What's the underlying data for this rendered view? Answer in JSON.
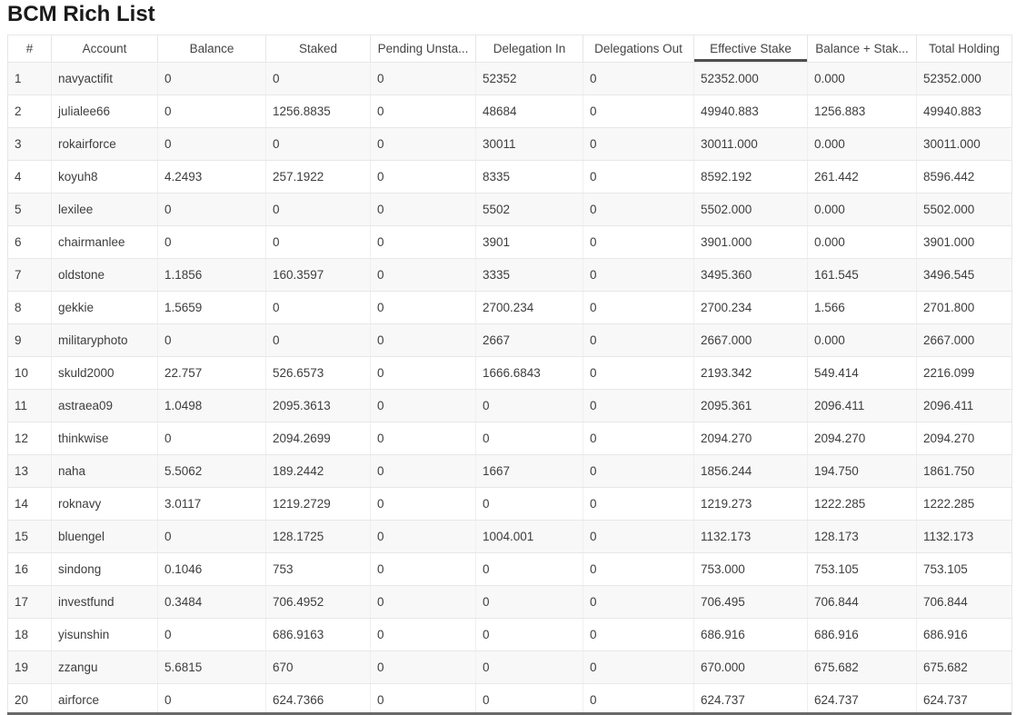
{
  "page": {
    "title": "BCM Rich List"
  },
  "colors": {
    "title_text": "#1a1a1a",
    "header_text": "#444444",
    "cell_text": "#3d3d3d",
    "row_stripe": "#f8f8f8",
    "border_light": "#e6e6e6",
    "sort_underline": "#4f4f4f"
  },
  "table": {
    "sorted_column": "Effective Stake",
    "columns": [
      {
        "key": "rank",
        "label": "#",
        "sorted": false
      },
      {
        "key": "account",
        "label": "Account",
        "sorted": false
      },
      {
        "key": "balance",
        "label": "Balance",
        "sorted": false
      },
      {
        "key": "staked",
        "label": "Staked",
        "sorted": false
      },
      {
        "key": "pending_unstaked",
        "label": "Pending Unsta...",
        "sorted": false
      },
      {
        "key": "delegation_in",
        "label": "Delegation In",
        "sorted": false
      },
      {
        "key": "delegations_out",
        "label": "Delegations Out",
        "sorted": false
      },
      {
        "key": "effective_stake",
        "label": "Effective Stake",
        "sorted": true
      },
      {
        "key": "balance_plus_staked",
        "label": "Balance + Stak...",
        "sorted": false
      },
      {
        "key": "total_holding",
        "label": "Total Holding",
        "sorted": false
      }
    ],
    "rows": [
      [
        "1",
        "navyactifit",
        "0",
        "0",
        "0",
        "52352",
        "0",
        "52352.000",
        "0.000",
        "52352.000"
      ],
      [
        "2",
        "julialee66",
        "0",
        "1256.8835",
        "0",
        "48684",
        "0",
        "49940.883",
        "1256.883",
        "49940.883"
      ],
      [
        "3",
        "rokairforce",
        "0",
        "0",
        "0",
        "30011",
        "0",
        "30011.000",
        "0.000",
        "30011.000"
      ],
      [
        "4",
        "koyuh8",
        "4.2493",
        "257.1922",
        "0",
        "8335",
        "0",
        "8592.192",
        "261.442",
        "8596.442"
      ],
      [
        "5",
        "lexilee",
        "0",
        "0",
        "0",
        "5502",
        "0",
        "5502.000",
        "0.000",
        "5502.000"
      ],
      [
        "6",
        "chairmanlee",
        "0",
        "0",
        "0",
        "3901",
        "0",
        "3901.000",
        "0.000",
        "3901.000"
      ],
      [
        "7",
        "oldstone",
        "1.1856",
        "160.3597",
        "0",
        "3335",
        "0",
        "3495.360",
        "161.545",
        "3496.545"
      ],
      [
        "8",
        "gekkie",
        "1.5659",
        "0",
        "0",
        "2700.234",
        "0",
        "2700.234",
        "1.566",
        "2701.800"
      ],
      [
        "9",
        "militaryphoto",
        "0",
        "0",
        "0",
        "2667",
        "0",
        "2667.000",
        "0.000",
        "2667.000"
      ],
      [
        "10",
        "skuld2000",
        "22.757",
        "526.6573",
        "0",
        "1666.6843",
        "0",
        "2193.342",
        "549.414",
        "2216.099"
      ],
      [
        "11",
        "astraea09",
        "1.0498",
        "2095.3613",
        "0",
        "0",
        "0",
        "2095.361",
        "2096.411",
        "2096.411"
      ],
      [
        "12",
        "thinkwise",
        "0",
        "2094.2699",
        "0",
        "0",
        "0",
        "2094.270",
        "2094.270",
        "2094.270"
      ],
      [
        "13",
        "naha",
        "5.5062",
        "189.2442",
        "0",
        "1667",
        "0",
        "1856.244",
        "194.750",
        "1861.750"
      ],
      [
        "14",
        "roknavy",
        "3.0117",
        "1219.2729",
        "0",
        "0",
        "0",
        "1219.273",
        "1222.285",
        "1222.285"
      ],
      [
        "15",
        "bluengel",
        "0",
        "128.1725",
        "0",
        "1004.001",
        "0",
        "1132.173",
        "128.173",
        "1132.173"
      ],
      [
        "16",
        "sindong",
        "0.1046",
        "753",
        "0",
        "0",
        "0",
        "753.000",
        "753.105",
        "753.105"
      ],
      [
        "17",
        "investfund",
        "0.3484",
        "706.4952",
        "0",
        "0",
        "0",
        "706.495",
        "706.844",
        "706.844"
      ],
      [
        "18",
        "yisunshin",
        "0",
        "686.9163",
        "0",
        "0",
        "0",
        "686.916",
        "686.916",
        "686.916"
      ],
      [
        "19",
        "zzangu",
        "5.6815",
        "670",
        "0",
        "0",
        "0",
        "670.000",
        "675.682",
        "675.682"
      ],
      [
        "20",
        "airforce",
        "0",
        "624.7366",
        "0",
        "0",
        "0",
        "624.737",
        "624.737",
        "624.737"
      ]
    ]
  }
}
